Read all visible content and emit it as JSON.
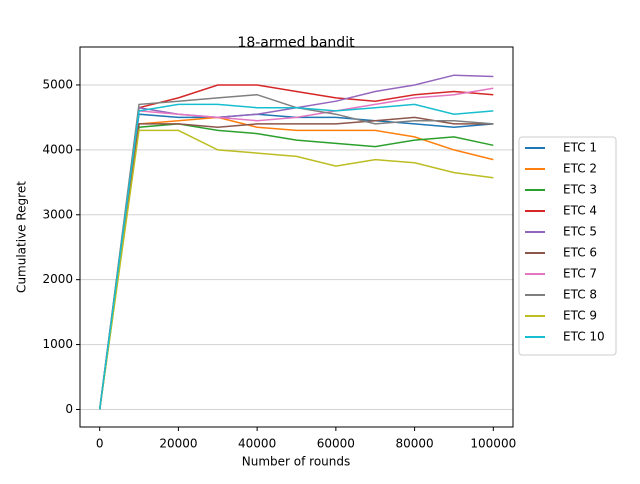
{
  "chart_data": {
    "type": "line",
    "title": "18-armed bandit",
    "xlabel": "Number of rounds",
    "ylabel": "Cumulative Regret",
    "x": [
      0,
      10000,
      20000,
      30000,
      40000,
      50000,
      60000,
      70000,
      80000,
      90000,
      100000
    ],
    "series": [
      {
        "name": "ETC 1",
        "color": "#1f77b4",
        "values": [
          0,
          4550,
          4500,
          4500,
          4550,
          4500,
          4500,
          4450,
          4400,
          4350,
          4400
        ]
      },
      {
        "name": "ETC 2",
        "color": "#ff7f0e",
        "values": [
          0,
          4400,
          4450,
          4500,
          4350,
          4300,
          4300,
          4300,
          4200,
          4000,
          3850
        ]
      },
      {
        "name": "ETC 3",
        "color": "#2ca02c",
        "values": [
          0,
          4350,
          4400,
          4300,
          4250,
          4150,
          4100,
          4050,
          4150,
          4200,
          4070
        ]
      },
      {
        "name": "ETC 4",
        "color": "#d62728",
        "values": [
          0,
          4650,
          4800,
          5000,
          5000,
          4900,
          4800,
          4750,
          4850,
          4900,
          4850
        ]
      },
      {
        "name": "ETC 5",
        "color": "#9467bd",
        "values": [
          0,
          4650,
          4550,
          4500,
          4550,
          4650,
          4750,
          4900,
          5000,
          5150,
          5130
        ]
      },
      {
        "name": "ETC 6",
        "color": "#8c564b",
        "values": [
          0,
          4400,
          4400,
          4350,
          4400,
          4400,
          4400,
          4450,
          4500,
          4400,
          4400
        ]
      },
      {
        "name": "ETC 7",
        "color": "#e377c2",
        "values": [
          0,
          4600,
          4550,
          4500,
          4450,
          4500,
          4600,
          4700,
          4800,
          4850,
          4950
        ]
      },
      {
        "name": "ETC 8",
        "color": "#7f7f7f",
        "values": [
          0,
          4700,
          4750,
          4800,
          4850,
          4650,
          4550,
          4400,
          4450,
          4450,
          4400
        ]
      },
      {
        "name": "ETC 9",
        "color": "#bcbd22",
        "values": [
          0,
          4300,
          4300,
          4000,
          3950,
          3900,
          3750,
          3850,
          3800,
          3650,
          3570
        ]
      },
      {
        "name": "ETC 10",
        "color": "#17becf",
        "values": [
          0,
          4600,
          4700,
          4700,
          4650,
          4650,
          4600,
          4650,
          4700,
          4550,
          4600
        ]
      }
    ],
    "xlim": [
      -5000,
      105000
    ],
    "ylim": [
      -270,
      5585
    ],
    "xticks": [
      0,
      20000,
      40000,
      60000,
      80000,
      100000
    ],
    "yticks": [
      0,
      1000,
      2000,
      3000,
      4000,
      5000
    ],
    "grid": "y",
    "legend": "right"
  }
}
